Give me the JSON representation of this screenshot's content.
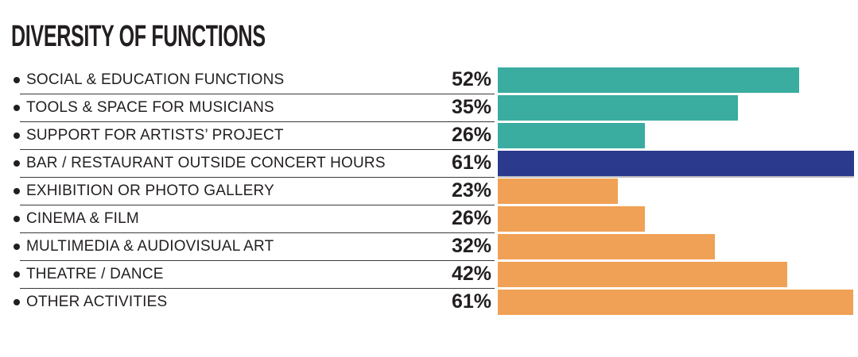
{
  "title": "DIVERSITY OF FUNCTIONS",
  "colors": {
    "teal": "#3AACA0",
    "navy": "#2B3A8C",
    "orange": "#F0A155",
    "text": "#231F20",
    "divider": "#3A3A3A",
    "background": "#FFFFFF"
  },
  "chart_data": {
    "type": "bar",
    "orientation": "horizontal",
    "title": "DIVERSITY OF FUNCTIONS",
    "unit": "%",
    "legend": "none",
    "grid": false,
    "axes_visible": false,
    "categories": [
      "SOCIAL & EDUCATION FUNCTIONS",
      "TOOLS & SPACE FOR MUSICIANS",
      "SUPPORT FOR ARTISTS’ PROJECT",
      "BAR / RESTAURANT OUTSIDE CONCERT HOURS",
      "EXHIBITION OR PHOTO GALLERY",
      "CINEMA & FILM",
      "MULTIMEDIA & AUDIOVISUAL ART",
      "THEATRE / DANCE",
      "OTHER ACTIVITIES"
    ],
    "values": [
      52,
      35,
      26,
      61,
      23,
      26,
      32,
      42,
      61
    ],
    "rows": [
      {
        "label": "SOCIAL & EDUCATION FUNCTIONS",
        "value_display": "52%",
        "value": 52,
        "color": "#3AACA0",
        "bar_width_pct_of_track": 83.7,
        "emphasis": false
      },
      {
        "label": "TOOLS & SPACE FOR MUSICIANS",
        "value_display": "35%",
        "value": 35,
        "color": "#3AACA0",
        "bar_width_pct_of_track": 66.7,
        "emphasis": false
      },
      {
        "label": "SUPPORT FOR ARTISTS’ PROJECT",
        "value_display": "26%",
        "value": 26,
        "color": "#3AACA0",
        "bar_width_pct_of_track": 40.8,
        "emphasis": false
      },
      {
        "label": "BAR / RESTAURANT OUTSIDE CONCERT HOURS",
        "value_display": "61%",
        "value": 61,
        "color": "#2B3A8C",
        "bar_width_pct_of_track": 98.9,
        "emphasis": true
      },
      {
        "label": "EXHIBITION OR PHOTO GALLERY",
        "value_display": "23%",
        "value": 23,
        "color": "#F0A155",
        "bar_width_pct_of_track": 33.3,
        "emphasis": false
      },
      {
        "label": "CINEMA & FILM",
        "value_display": "26%",
        "value": 26,
        "color": "#F0A155",
        "bar_width_pct_of_track": 40.8,
        "emphasis": false
      },
      {
        "label": "MULTIMEDIA & AUDIOVISUAL ART",
        "value_display": "32%",
        "value": 32,
        "color": "#F0A155",
        "bar_width_pct_of_track": 60.3,
        "emphasis": false
      },
      {
        "label": "THEATRE / DANCE",
        "value_display": "42%",
        "value": 42,
        "color": "#F0A155",
        "bar_width_pct_of_track": 80.4,
        "emphasis": false
      },
      {
        "label": "OTHER ACTIVITIES",
        "value_display": "61%",
        "value": 61,
        "color": "#F0A155",
        "bar_width_pct_of_track": 98.7,
        "emphasis": false
      }
    ]
  }
}
